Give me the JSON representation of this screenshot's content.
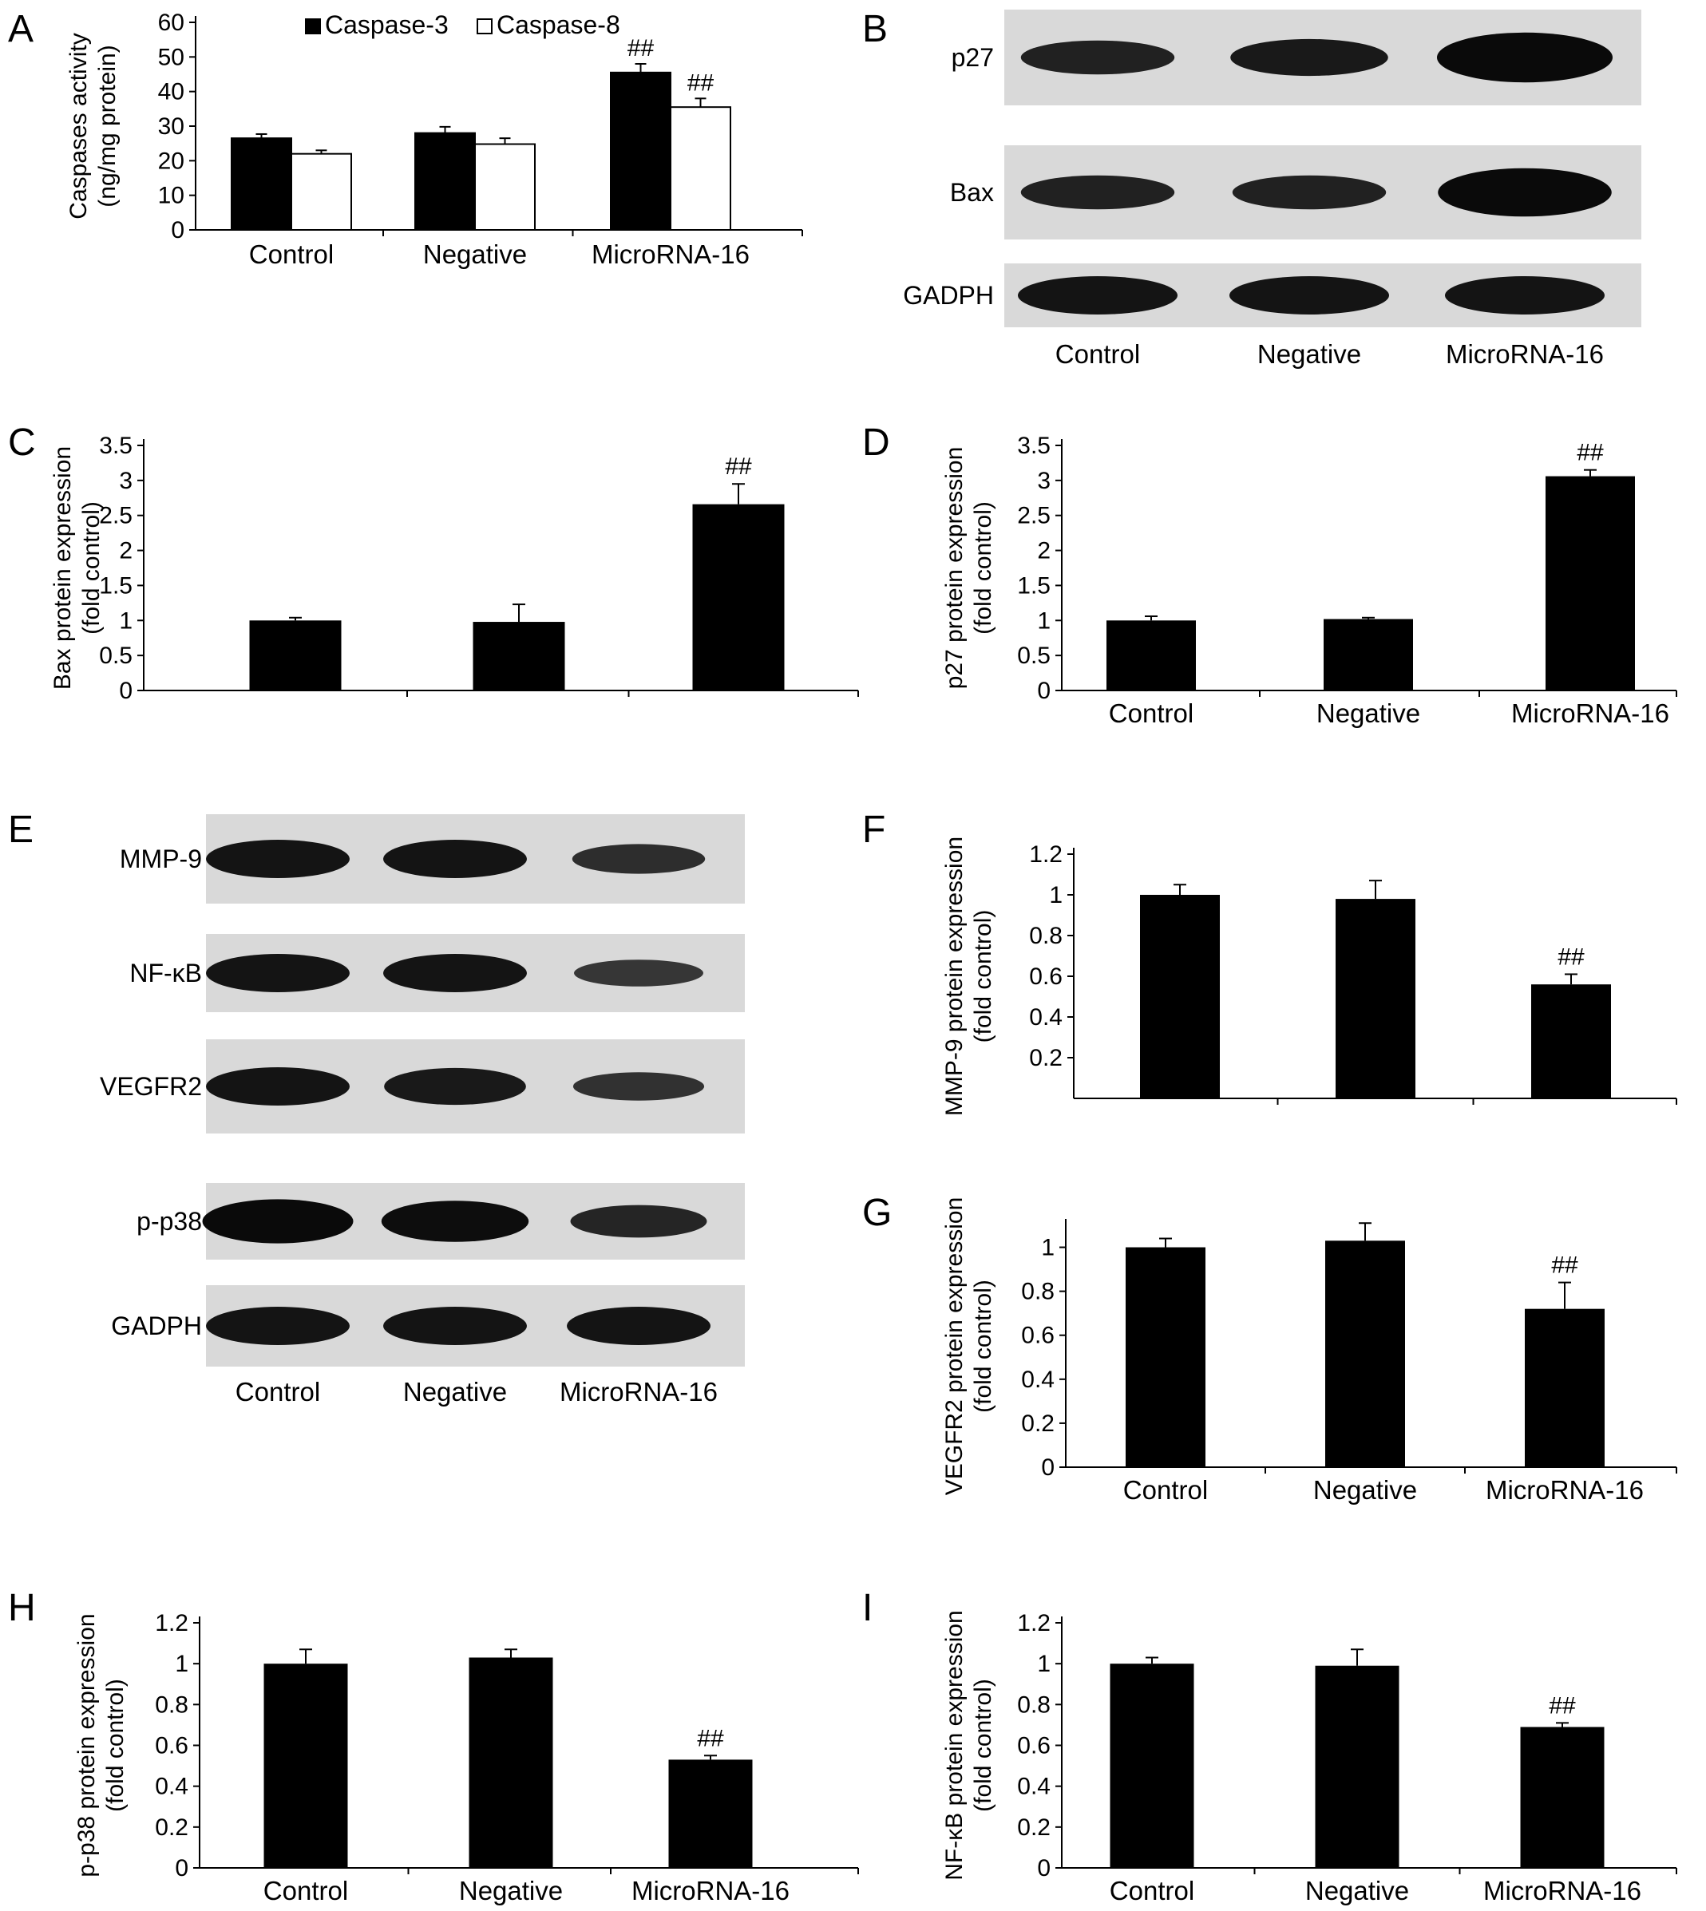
{
  "panels": {
    "A": "A",
    "B": "B",
    "C": "C",
    "D": "D",
    "E": "E",
    "F": "F",
    "G": "G",
    "H": "H",
    "I": "I"
  },
  "colors": {
    "bar": "#000000",
    "open_bar": "#ffffff",
    "blot_bg": "#d9d9d9",
    "band": "#0a0a0a"
  },
  "chart_data": [
    {
      "panel": "A",
      "type": "bar",
      "categories": [
        "Control",
        "Negative",
        "MicroRNA-16"
      ],
      "series": [
        {
          "name": "Caspase-3",
          "values": [
            26.5,
            28,
            45.5
          ],
          "errors": [
            1.2,
            1.8,
            2.5
          ],
          "fill": "#000000"
        },
        {
          "name": "Caspase-8",
          "values": [
            22,
            24.8,
            35.5
          ],
          "errors": [
            1,
            1.7,
            2.5
          ],
          "fill": "#ffffff"
        }
      ],
      "significance": [
        "",
        "",
        "##"
      ],
      "ylabel": [
        "Caspases activity",
        "(ng/mg protein)"
      ],
      "ylim": [
        0,
        60
      ],
      "yticks": [
        0,
        10,
        20,
        30,
        40,
        50,
        60
      ],
      "legend_position": "top"
    },
    {
      "panel": "C",
      "type": "bar",
      "categories": [
        "",
        "",
        ""
      ],
      "values": [
        1.0,
        0.98,
        2.66
      ],
      "errors": [
        0.04,
        0.25,
        0.29
      ],
      "significance": [
        "",
        "",
        "##"
      ],
      "ylabel": [
        "Bax protein expression",
        "(fold control)"
      ],
      "ylim": [
        0,
        3.5
      ],
      "yticks": [
        "0",
        "0.5",
        "1",
        "1.5",
        "2",
        "2.5",
        "3",
        "3.5"
      ]
    },
    {
      "panel": "D",
      "type": "bar",
      "categories": [
        "Control",
        "Negative",
        "MicroRNA-16"
      ],
      "values": [
        1.0,
        1.02,
        3.06
      ],
      "errors": [
        0.06,
        0.02,
        0.09
      ],
      "significance": [
        "",
        "",
        "##"
      ],
      "ylabel": [
        "p27 protein expression",
        "(fold control)"
      ],
      "ylim": [
        0,
        3.5
      ],
      "yticks": [
        "0",
        "0.5",
        "1",
        "1.5",
        "2",
        "2.5",
        "3",
        "3.5"
      ]
    },
    {
      "panel": "F",
      "type": "bar",
      "categories": [
        "",
        "",
        ""
      ],
      "values": [
        1.0,
        0.98,
        0.56
      ],
      "errors": [
        0.05,
        0.09,
        0.05
      ],
      "significance": [
        "",
        "",
        "##"
      ],
      "ylabel": [
        "MMP-9 protein expression",
        "(fold control)"
      ],
      "ylim": [
        0,
        1.2
      ],
      "yticks": [
        "0.2",
        "0.4",
        "0.6",
        "0.8",
        "1",
        "1.2"
      ]
    },
    {
      "panel": "G",
      "type": "bar",
      "categories": [
        "Control",
        "Negative",
        "MicroRNA-16"
      ],
      "values": [
        1.0,
        1.03,
        0.72
      ],
      "errors": [
        0.04,
        0.08,
        0.12
      ],
      "significance": [
        "",
        "",
        "##"
      ],
      "ylabel": [
        "VEGFR2 protein expression",
        "(fold control)"
      ],
      "ylim": [
        0,
        1.1
      ],
      "yticks": [
        "0",
        "0.2",
        "0.4",
        "0.6",
        "0.8",
        "1"
      ]
    },
    {
      "panel": "H",
      "type": "bar",
      "categories": [
        "Control",
        "Negative",
        "MicroRNA-16"
      ],
      "values": [
        1.0,
        1.03,
        0.53
      ],
      "errors": [
        0.07,
        0.04,
        0.02
      ],
      "significance": [
        "",
        "",
        "##"
      ],
      "ylabel": [
        "p-p38 protein expression",
        "(fold control)"
      ],
      "ylim": [
        0,
        1.2
      ],
      "yticks": [
        "0",
        "0.2",
        "0.4",
        "0.6",
        "0.8",
        "1",
        "1.2"
      ]
    },
    {
      "panel": "I",
      "type": "bar",
      "categories": [
        "Control",
        "Negative",
        "MicroRNA-16"
      ],
      "values": [
        1.0,
        0.99,
        0.69
      ],
      "errors": [
        0.03,
        0.08,
        0.02
      ],
      "significance": [
        "",
        "",
        "##"
      ],
      "ylabel": [
        "NF-κB protein expression",
        "(fold control)"
      ],
      "ylim": [
        0,
        1.2
      ],
      "yticks": [
        "0",
        "0.2",
        "0.4",
        "0.6",
        "0.8",
        "1",
        "1.2"
      ]
    }
  ],
  "blots": [
    {
      "panel": "B",
      "rows": [
        {
          "label": "p27",
          "intensity": [
            0.85,
            0.95,
            1.4
          ]
        },
        {
          "label": "Bax",
          "intensity": [
            0.85,
            0.85,
            1.35
          ]
        },
        {
          "label": "GADPH",
          "intensity": [
            1.0,
            1.0,
            1.0
          ]
        }
      ],
      "lanes": [
        "Control",
        "Negative",
        "MicroRNA-16"
      ]
    },
    {
      "panel": "E",
      "rows": [
        {
          "label": "MMP-9",
          "intensity": [
            1.0,
            1.0,
            0.7
          ]
        },
        {
          "label": "NF-κB",
          "intensity": [
            1.0,
            1.0,
            0.6
          ]
        },
        {
          "label": "VEGFR2",
          "intensity": [
            1.0,
            0.95,
            0.65
          ]
        },
        {
          "label": "p-p38",
          "intensity": [
            1.2,
            1.1,
            0.8
          ]
        },
        {
          "label": "GADPH",
          "intensity": [
            1.0,
            1.0,
            1.0
          ]
        }
      ],
      "lanes": [
        "Control",
        "Negative",
        "MicroRNA-16"
      ]
    }
  ]
}
